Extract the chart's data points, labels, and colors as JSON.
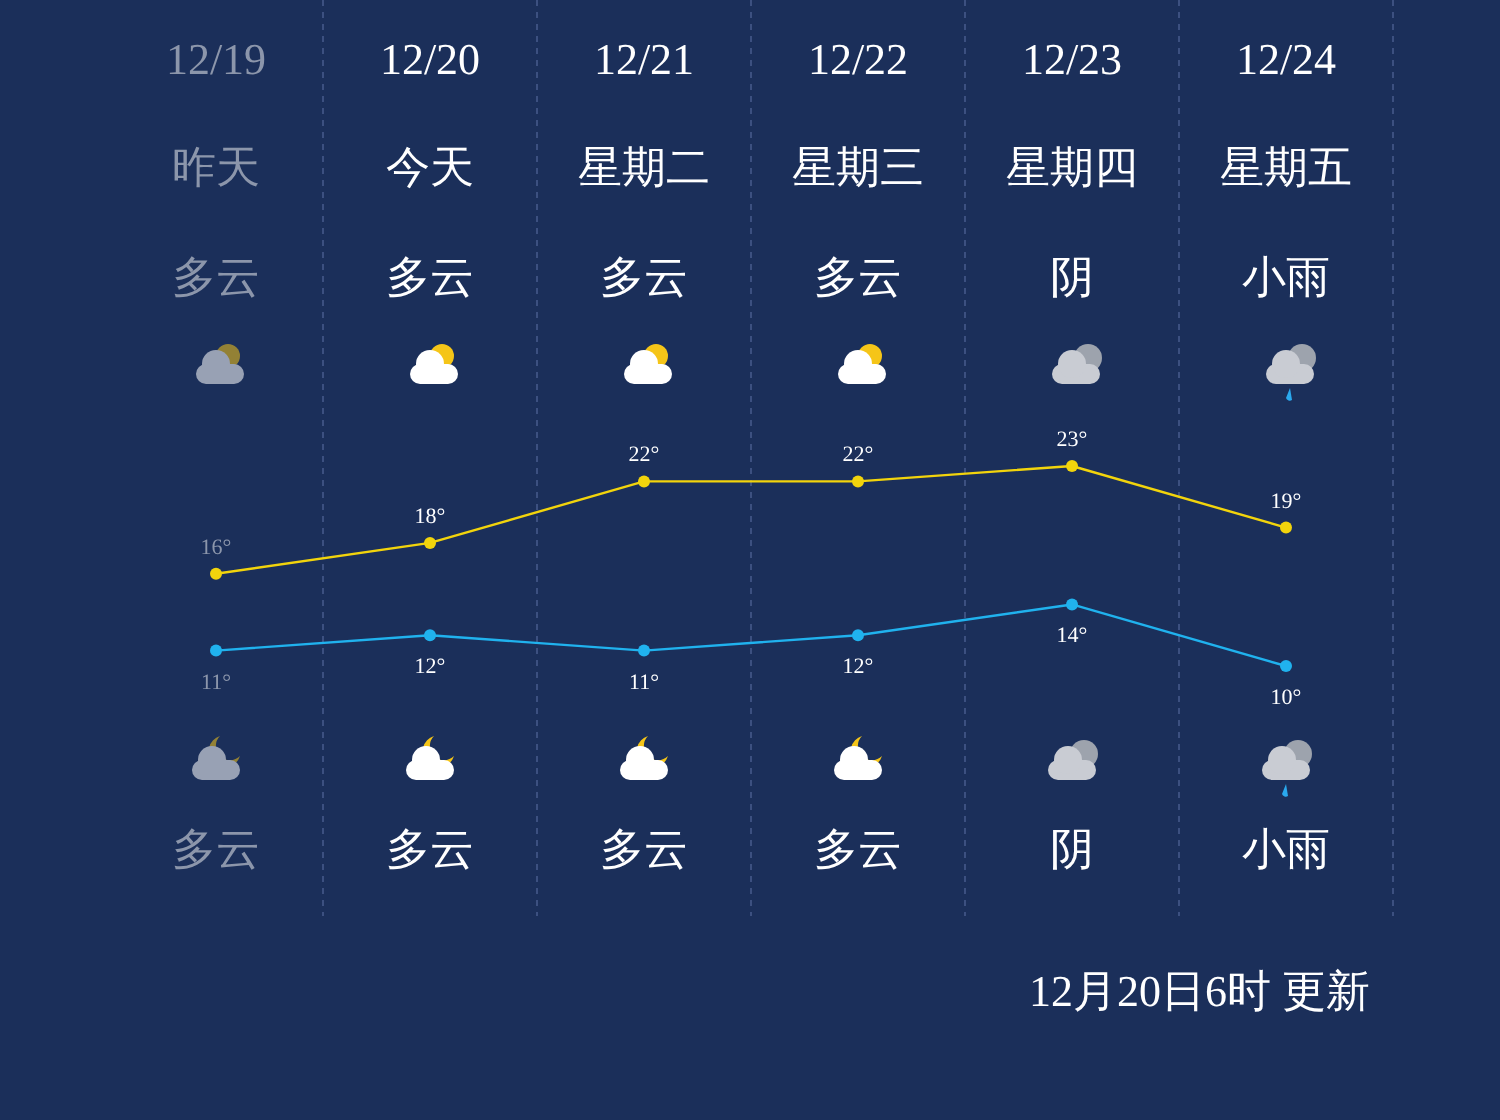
{
  "chart_data": {
    "type": "line",
    "categories": [
      "12/19",
      "12/20",
      "12/21",
      "12/22",
      "12/23",
      "12/24"
    ],
    "series": [
      {
        "color": "#f2d40c",
        "values": [
          16,
          18,
          22,
          22,
          23,
          19
        ],
        "value_labels": [
          "16°",
          "18°",
          "22°",
          "22°",
          "23°",
          "19°"
        ]
      },
      {
        "color": "#20b2ee",
        "values": [
          11,
          12,
          11,
          12,
          14,
          10
        ],
        "value_labels": [
          "11°",
          "12°",
          "11°",
          "12°",
          "14°",
          "10°"
        ]
      }
    ],
    "marker": "circle",
    "annotations": [
      "昨天",
      "今天",
      "星期二",
      "星期三",
      "星期四",
      "星期五",
      "多云",
      "多云",
      "多云",
      "多云",
      "阴",
      "小雨",
      "多云",
      "多云",
      "多云",
      "多云",
      "阴",
      "小雨",
      "12月20日6时 更新"
    ]
  }
}
